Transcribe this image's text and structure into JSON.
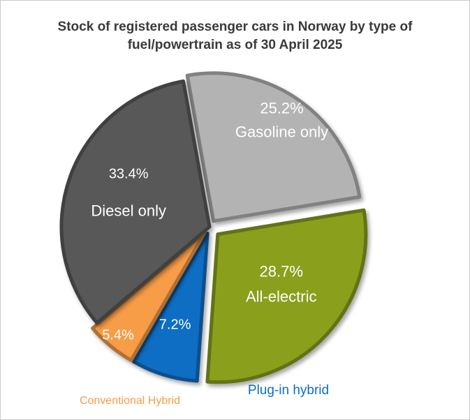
{
  "chart_data": {
    "type": "pie",
    "title_line1": "Stock of registered passenger cars in Norway by type of",
    "title_line2": "fuel/powertrain as of 30 April 2025",
    "slices": [
      {
        "name": "Gasoline only",
        "value": 25.2,
        "label": "25.2%",
        "color": "#b3b3b3"
      },
      {
        "name": "All-electric",
        "value": 28.7,
        "label": "28.7%",
        "color": "#8a9f1f"
      },
      {
        "name": "Plug-in hybrid",
        "value": 7.2,
        "label": "7.2%",
        "color": "#0a6ec3"
      },
      {
        "name": "Conventional Hybrid",
        "value": 5.4,
        "label": "5.4%",
        "color": "#f79c46"
      },
      {
        "name": "Diesel only",
        "value": 33.4,
        "label": "33.4%",
        "color": "#595959"
      }
    ]
  }
}
